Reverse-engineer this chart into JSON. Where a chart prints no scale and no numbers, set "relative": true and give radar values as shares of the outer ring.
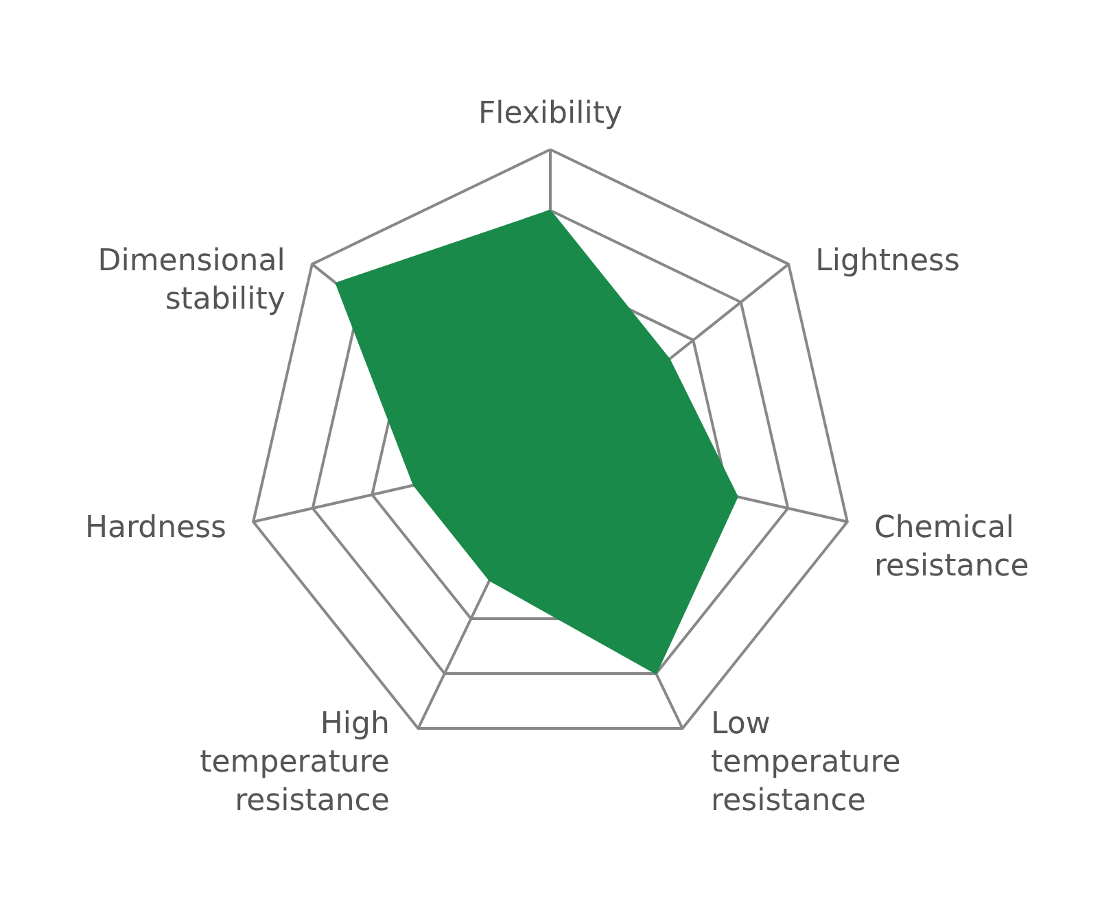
{
  "chart_data": {
    "type": "radar",
    "relative": true,
    "grid": true,
    "categories": [
      "Flexibility",
      "Lightness",
      "Chemical resistance",
      "Low temperature resistance",
      "High temperature resistance",
      "Hardness",
      "Dimensional stability"
    ],
    "series": [
      {
        "color": "#1a8a4a",
        "values": [
          0.8,
          0.5,
          0.63,
          0.8,
          0.46,
          0.46,
          0.9
        ]
      }
    ]
  }
}
